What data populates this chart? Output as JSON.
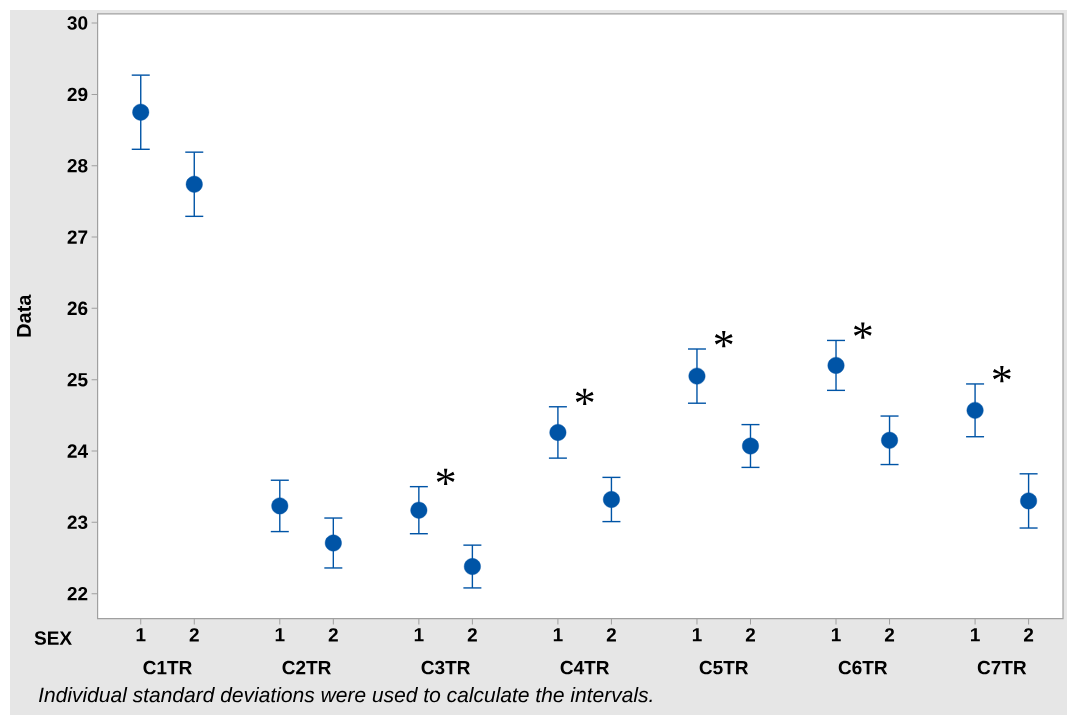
{
  "chart_data": {
    "type": "scatter",
    "xlabel": "SEX",
    "ylabel": "Data",
    "categories": [
      "1",
      "2",
      "1",
      "2",
      "1",
      "2",
      "1",
      "2",
      "1",
      "2",
      "1",
      "2",
      "1",
      "2"
    ],
    "color": "#0054a6",
    "values": [
      28.75,
      27.74,
      23.23,
      22.71,
      23.17,
      22.38,
      24.26,
      23.32,
      25.05,
      24.07,
      25.2,
      24.15,
      24.57,
      23.3
    ],
    "errors": [
      0.52,
      0.45,
      0.36,
      0.35,
      0.33,
      0.3,
      0.36,
      0.31,
      0.38,
      0.3,
      0.35,
      0.34,
      0.37,
      0.38
    ],
    "ylim": [
      21.65,
      30.13
    ],
    "yticks": [
      22,
      23,
      24,
      25,
      26,
      27,
      28,
      29,
      30
    ],
    "marker": "circle",
    "annotations": [
      "C1TR",
      "C2TR",
      "C3TR",
      "C4TR",
      "C5TR",
      "C6TR",
      "C7TR",
      "*",
      "*",
      "*",
      "*",
      "*",
      "Individual standard deviations were used to calculate the intervals."
    ]
  }
}
